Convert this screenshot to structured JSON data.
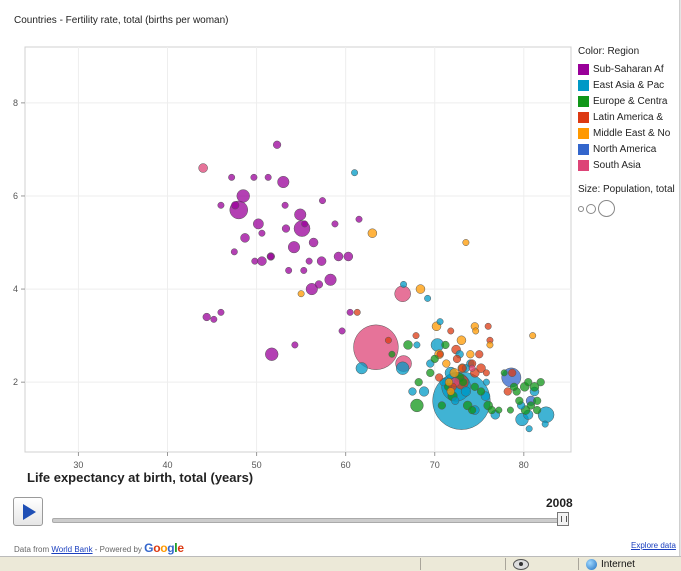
{
  "chart": {
    "title": "Countries - Fertility rate, total (births per woman)",
    "xlabel": "Life expectancy at birth, total (years)",
    "year": "2008"
  },
  "legend": {
    "color_title": "Color: Region",
    "regions": [
      {
        "label": "Sub-Saharan Af",
        "color": "#990099"
      },
      {
        "label": "East Asia & Pac",
        "color": "#0099c6"
      },
      {
        "label": "Europe & Centra",
        "color": "#109618"
      },
      {
        "label": "Latin America &",
        "color": "#dc3912"
      },
      {
        "label": "Middle East & No",
        "color": "#ff9900"
      },
      {
        "label": "North America",
        "color": "#3366cc"
      },
      {
        "label": "South Asia",
        "color": "#dd4477"
      }
    ],
    "size_title": "Size: Population, total"
  },
  "footer": {
    "data_from": "Data from",
    "world_bank": "World Bank",
    "powered_by": " - Powered by",
    "google": "Google",
    "explore": "Explore data"
  },
  "status": {
    "zone": "Internet"
  },
  "icons": {
    "play": "play-icon",
    "eye": "privacy-eye-icon",
    "globe": "internet-zone-globe-icon"
  },
  "chart_data": {
    "type": "scatter",
    "title": "Countries - Fertility rate, total (births per woman)",
    "xlabel": "Life expectancy at birth, total (years)",
    "ylabel": "",
    "xlim": [
      24,
      85.3
    ],
    "ylim": [
      0.5,
      9.2
    ],
    "xticks": [
      30,
      40,
      50,
      60,
      70,
      80
    ],
    "yticks": [
      2,
      4,
      6,
      8
    ],
    "grid": true,
    "legend_position": "right",
    "size_encoding": "Population, total",
    "series": [
      {
        "name": "Sub-Saharan Af",
        "color": "#990099",
        "points": [
          [
            52.3,
            7.1,
            1.2
          ],
          [
            49.7,
            6.4,
            1
          ],
          [
            53.0,
            6.3,
            1.8
          ],
          [
            51.3,
            6.4,
            1
          ],
          [
            47.2,
            6.4,
            1
          ],
          [
            48.5,
            6.0,
            2.0
          ],
          [
            48.0,
            5.7,
            2.8
          ],
          [
            47.6,
            5.8,
            1.2
          ],
          [
            46.0,
            5.8,
            1
          ],
          [
            50.2,
            5.4,
            1.6
          ],
          [
            53.2,
            5.8,
            1
          ],
          [
            54.9,
            5.6,
            1.8
          ],
          [
            57.4,
            5.9,
            1
          ],
          [
            55.4,
            5.4,
            1
          ],
          [
            50.6,
            5.2,
            1
          ],
          [
            53.3,
            5.3,
            1.2
          ],
          [
            55.1,
            5.3,
            2.5
          ],
          [
            58.8,
            5.4,
            1
          ],
          [
            48.7,
            5.1,
            1.4
          ],
          [
            54.2,
            4.9,
            1.8
          ],
          [
            56.4,
            5.0,
            1.4
          ],
          [
            47.5,
            4.8,
            1
          ],
          [
            51.6,
            4.7,
            1.2
          ],
          [
            49.8,
            4.6,
            1
          ],
          [
            51.6,
            4.7,
            1
          ],
          [
            50.6,
            4.6,
            1.4
          ],
          [
            55.9,
            4.6,
            1
          ],
          [
            57.3,
            4.6,
            1.4
          ],
          [
            59.2,
            4.7,
            1.4
          ],
          [
            60.3,
            4.7,
            1.4
          ],
          [
            55.3,
            4.4,
            1
          ],
          [
            53.6,
            4.4,
            1
          ],
          [
            58.3,
            4.2,
            1.8
          ],
          [
            56.2,
            4.0,
            1.8
          ],
          [
            57.0,
            4.1,
            1.2
          ],
          [
            44.4,
            3.4,
            1.2
          ],
          [
            45.2,
            3.35,
            1
          ],
          [
            46.0,
            3.5,
            1
          ],
          [
            51.7,
            2.6,
            2.0
          ],
          [
            54.3,
            2.8,
            1
          ],
          [
            59.6,
            3.1,
            1
          ],
          [
            60.5,
            3.5,
            1
          ],
          [
            61.5,
            5.5,
            1
          ]
        ]
      },
      {
        "name": "East Asia & Pac",
        "color": "#0099c6",
        "points": [
          [
            61.0,
            6.5,
            1
          ],
          [
            61.8,
            2.3,
            1.8
          ],
          [
            68.8,
            1.8,
            1.5
          ],
          [
            72.4,
            1.9,
            4.5
          ],
          [
            73.0,
            1.6,
            9.0
          ],
          [
            70.3,
            2.8,
            2.0
          ],
          [
            66.4,
            2.3,
            2.0
          ],
          [
            67.5,
            1.8,
            1.2
          ],
          [
            80.5,
            1.3,
            1.5
          ],
          [
            79.8,
            1.2,
            2.0
          ],
          [
            82.5,
            1.3,
            2.5
          ],
          [
            74.5,
            1.4,
            1.4
          ],
          [
            75.7,
            1.7,
            1.4
          ],
          [
            72.8,
            2.6,
            1.2
          ],
          [
            71.8,
            2.2,
            1.8
          ],
          [
            73.5,
            2.3,
            1.2
          ],
          [
            69.5,
            2.4,
            1.2
          ],
          [
            81.2,
            1.8,
            1.4
          ],
          [
            79.7,
            1.5,
            1.2
          ],
          [
            80.6,
            1.0,
            1
          ],
          [
            82.4,
            1.1,
            1
          ],
          [
            71.0,
            2.0,
            1.2
          ],
          [
            68.0,
            2.8,
            1
          ],
          [
            70.6,
            3.3,
            1
          ],
          [
            75.8,
            2.0,
            1
          ],
          [
            74.0,
            2.4,
            1.2
          ],
          [
            72.3,
            1.6,
            1.2
          ],
          [
            73.5,
            1.8,
            1.5
          ],
          [
            66.5,
            4.1,
            1
          ],
          [
            69.2,
            3.8,
            1
          ],
          [
            76.8,
            1.3,
            1.4
          ]
        ]
      },
      {
        "name": "Europe & Centra",
        "color": "#109618",
        "points": [
          [
            68.0,
            1.5,
            2.0
          ],
          [
            72.0,
            1.7,
            1.5
          ],
          [
            71.5,
            1.9,
            1.2
          ],
          [
            72.8,
            2.1,
            1.4
          ],
          [
            74.5,
            1.9,
            1.2
          ],
          [
            73.7,
            1.5,
            1.4
          ],
          [
            76.0,
            1.5,
            1.4
          ],
          [
            77.2,
            1.4,
            1
          ],
          [
            78.5,
            1.4,
            1
          ],
          [
            79.5,
            1.6,
            1.2
          ],
          [
            80.2,
            1.4,
            1.4
          ],
          [
            80.8,
            1.5,
            1.2
          ],
          [
            81.5,
            1.4,
            1.2
          ],
          [
            81.2,
            1.9,
            1.4
          ],
          [
            80.1,
            1.9,
            1.4
          ],
          [
            79.2,
            1.8,
            1.2
          ],
          [
            81.9,
            2.0,
            1.2
          ],
          [
            80.5,
            2.0,
            1.2
          ],
          [
            74.2,
            1.4,
            1.2
          ],
          [
            70.8,
            1.5,
            1.2
          ],
          [
            69.5,
            2.2,
            1.2
          ],
          [
            67.0,
            2.8,
            1.4
          ],
          [
            65.2,
            2.6,
            1
          ],
          [
            70.0,
            2.5,
            1.2
          ],
          [
            71.2,
            2.8,
            1.2
          ],
          [
            68.2,
            2.0,
            1.2
          ],
          [
            73.2,
            2.0,
            1.2
          ],
          [
            75.2,
            1.8,
            1.2
          ],
          [
            76.4,
            1.4,
            1.2
          ],
          [
            77.8,
            2.2,
            1
          ],
          [
            78.9,
            1.9,
            1.2
          ],
          [
            81.5,
            1.6,
            1.2
          ]
        ]
      },
      {
        "name": "Latin America &",
        "color": "#dc3912",
        "points": [
          [
            61.3,
            3.5,
            1
          ],
          [
            64.8,
            2.9,
            1
          ],
          [
            72.5,
            2.5,
            1.2
          ],
          [
            73.1,
            2.3,
            1.2
          ],
          [
            74.5,
            2.2,
            1.4
          ],
          [
            73.0,
            2.0,
            2.2
          ],
          [
            72.0,
            1.9,
            1.2
          ],
          [
            75.0,
            2.6,
            1.2
          ],
          [
            76.2,
            2.9,
            1
          ],
          [
            71.8,
            3.1,
            1
          ],
          [
            70.6,
            2.6,
            1
          ],
          [
            74.2,
            2.4,
            1.2
          ],
          [
            72.4,
            2.7,
            1.4
          ],
          [
            78.7,
            2.2,
            1.2
          ],
          [
            75.2,
            2.3,
            1.4
          ],
          [
            70.5,
            2.1,
            1.2
          ],
          [
            67.9,
            3.0,
            1
          ],
          [
            76.0,
            3.2,
            1
          ],
          [
            78.2,
            1.8,
            1.2
          ],
          [
            75.8,
            2.2,
            1
          ]
        ]
      },
      {
        "name": "Middle East & No",
        "color": "#ff9900",
        "points": [
          [
            55.0,
            3.9,
            1
          ],
          [
            63.0,
            5.2,
            1.4
          ],
          [
            73.5,
            5.0,
            1
          ],
          [
            68.4,
            4.0,
            1.4
          ],
          [
            70.2,
            3.2,
            1.4
          ],
          [
            71.3,
            2.4,
            1.2
          ],
          [
            73.0,
            2.9,
            1.4
          ],
          [
            74.5,
            3.2,
            1.2
          ],
          [
            74.0,
            2.6,
            1.2
          ],
          [
            72.2,
            2.2,
            1.4
          ],
          [
            71.6,
            2.0,
            1.2
          ],
          [
            71.8,
            1.8,
            1.2
          ],
          [
            70.5,
            2.6,
            1.4
          ],
          [
            81.0,
            3.0,
            1
          ],
          [
            73.1,
            2.3,
            1.4
          ],
          [
            76.2,
            2.8,
            1
          ],
          [
            74.6,
            3.1,
            1
          ]
        ]
      },
      {
        "name": "North America",
        "color": "#3366cc",
        "points": [
          [
            78.6,
            2.1,
            3.0
          ],
          [
            80.8,
            1.6,
            1.5
          ]
        ]
      },
      {
        "name": "South Asia",
        "color": "#dd4477",
        "points": [
          [
            44.0,
            6.6,
            1.4
          ],
          [
            63.4,
            2.75,
            7.0
          ],
          [
            66.5,
            2.4,
            2.5
          ],
          [
            66.4,
            3.9,
            2.5
          ],
          [
            72.3,
            2.0,
            1.4
          ],
          [
            74.2,
            2.3,
            1
          ]
        ]
      }
    ]
  }
}
